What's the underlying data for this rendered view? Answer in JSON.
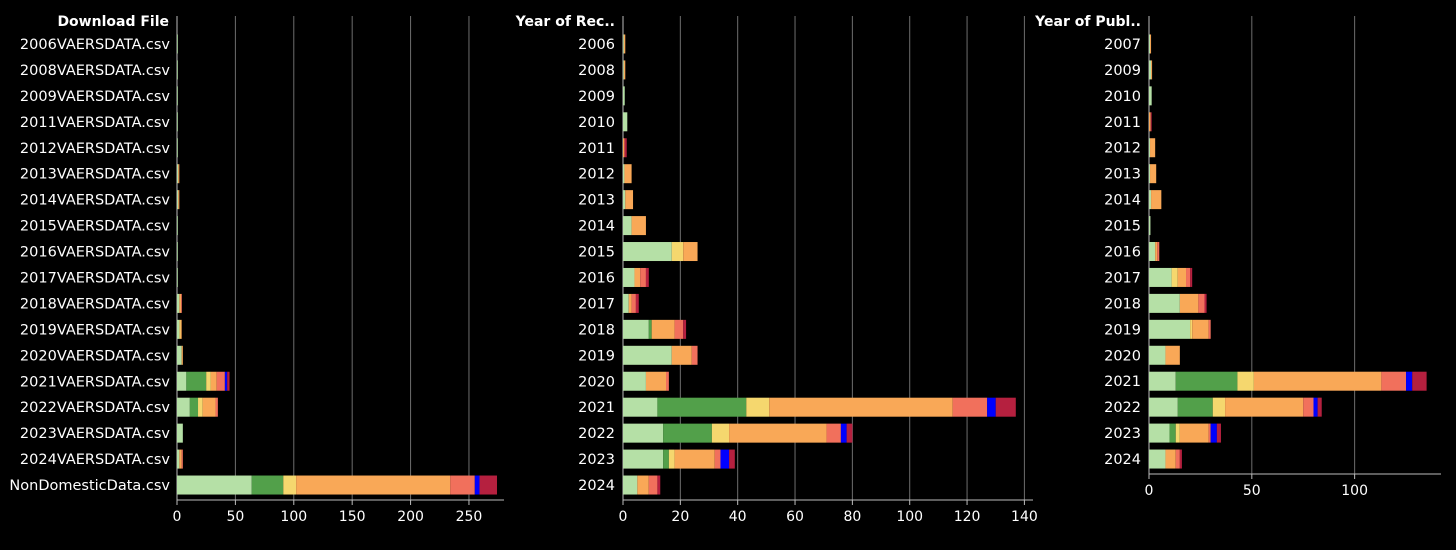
{
  "colors": {
    "background": "#000000",
    "segments": [
      "#b5e0a6",
      "#52a04a",
      "#f5d76e",
      "#f9a857",
      "#f1705c",
      "#0000ff",
      "#b5203f"
    ],
    "gridline": "#6e6e6e",
    "axis": "#bdbdbd",
    "text": "#ffffff"
  },
  "chart_data": [
    {
      "type": "bar",
      "orientation": "horizontal",
      "stacked": true,
      "title": "Download File",
      "xlim": [
        0,
        280
      ],
      "xticks": [
        0,
        50,
        100,
        150,
        200,
        250
      ],
      "grid": true,
      "categories": [
        "2006VAERSDATA.csv",
        "2008VAERSDATA.csv",
        "2009VAERSDATA.csv",
        "2011VAERSDATA.csv",
        "2012VAERSDATA.csv",
        "2013VAERSDATA.csv",
        "2014VAERSDATA.csv",
        "2015VAERSDATA.csv",
        "2016VAERSDATA.csv",
        "2017VAERSDATA.csv",
        "2018VAERSDATA.csv",
        "2019VAERSDATA.csv",
        "2020VAERSDATA.csv",
        "2021VAERSDATA.csv",
        "2022VAERSDATA.csv",
        "2023VAERSDATA.csv",
        "2024VAERSDATA.csv",
        "NonDomesticData.csv"
      ],
      "segments": [
        [
          0.3,
          0,
          0,
          0,
          0,
          0,
          0
        ],
        [
          0.3,
          0,
          0,
          0,
          0,
          0,
          0
        ],
        [
          0.3,
          0,
          0,
          0,
          0,
          0,
          0
        ],
        [
          0.3,
          0,
          0,
          0,
          0,
          0,
          0
        ],
        [
          0.3,
          0,
          0,
          0,
          0,
          0,
          0
        ],
        [
          1,
          0,
          0,
          1,
          0,
          0,
          0
        ],
        [
          1,
          0,
          0,
          1,
          0,
          0,
          0
        ],
        [
          0.3,
          0,
          0,
          0,
          0,
          0,
          0
        ],
        [
          0.3,
          0,
          0,
          0,
          0,
          0,
          0
        ],
        [
          0.3,
          0,
          0,
          0,
          0,
          0,
          0
        ],
        [
          2,
          0,
          0,
          1.5,
          0.5,
          0,
          0
        ],
        [
          2,
          0,
          1,
          1,
          0,
          0,
          0
        ],
        [
          4,
          0,
          0,
          1,
          0,
          0,
          0
        ],
        [
          8,
          17,
          4,
          5,
          7,
          2,
          2
        ],
        [
          11,
          7,
          4,
          11,
          2,
          0,
          0
        ],
        [
          5,
          0,
          0,
          0,
          0,
          0,
          0
        ],
        [
          2,
          0,
          0,
          2,
          1,
          0,
          0
        ],
        [
          64,
          27,
          11,
          132,
          21,
          4,
          15
        ]
      ]
    },
    {
      "type": "bar",
      "orientation": "horizontal",
      "stacked": true,
      "title": "Year of Rec..",
      "xlim": [
        0,
        143
      ],
      "xticks": [
        0,
        20,
        40,
        60,
        80,
        100,
        120,
        140
      ],
      "grid": true,
      "categories": [
        "2006",
        "2008",
        "2009",
        "2010",
        "2011",
        "2012",
        "2013",
        "2014",
        "2015",
        "2016",
        "2017",
        "2018",
        "2019",
        "2020",
        "2021",
        "2022",
        "2023",
        "2024"
      ],
      "segments": [
        [
          0.3,
          0,
          0,
          0.5,
          0,
          0,
          0
        ],
        [
          0.3,
          0,
          0,
          0.5,
          0,
          0,
          0
        ],
        [
          0.6,
          0,
          0,
          0,
          0,
          0,
          0
        ],
        [
          1.5,
          0,
          0,
          0,
          0,
          0,
          0
        ],
        [
          0,
          0,
          0,
          0.5,
          0,
          0,
          0.8
        ],
        [
          0.5,
          0,
          0,
          2.5,
          0,
          0,
          0
        ],
        [
          0.8,
          0,
          0,
          2.7,
          0,
          0,
          0
        ],
        [
          3,
          0,
          0,
          5,
          0,
          0,
          0
        ],
        [
          17,
          0,
          4,
          5,
          0,
          0,
          0
        ],
        [
          4,
          0,
          0,
          2,
          2,
          0,
          1
        ],
        [
          2,
          0,
          0,
          1,
          1.5,
          0,
          1
        ],
        [
          9,
          1,
          0,
          8,
          3,
          0,
          1
        ],
        [
          17,
          0,
          0,
          7,
          2,
          0,
          0
        ],
        [
          8,
          0,
          0,
          7,
          1,
          0,
          0
        ],
        [
          12,
          31,
          8,
          64,
          12,
          3,
          7
        ],
        [
          14,
          17,
          6,
          34,
          5,
          2,
          2
        ],
        [
          14,
          2,
          2,
          14,
          2,
          3,
          2
        ],
        [
          5,
          0,
          0,
          4,
          3,
          0,
          1
        ]
      ]
    },
    {
      "type": "bar",
      "orientation": "horizontal",
      "stacked": true,
      "title": "Year of Publ..",
      "xlim": [
        0,
        142
      ],
      "xticks": [
        0,
        50,
        100
      ],
      "grid": true,
      "categories": [
        "2007",
        "2009",
        "2010",
        "2011",
        "2012",
        "2013",
        "2014",
        "2015",
        "2016",
        "2017",
        "2018",
        "2019",
        "2020",
        "2021",
        "2022",
        "2023",
        "2024"
      ],
      "segments": [
        [
          0.5,
          0,
          0,
          0.5,
          0,
          0,
          0
        ],
        [
          1,
          0,
          0,
          0.5,
          0,
          0,
          0
        ],
        [
          1.3,
          0,
          0,
          0,
          0,
          0,
          0
        ],
        [
          0,
          0,
          0,
          0.8,
          0,
          0,
          0.5
        ],
        [
          0.5,
          0,
          0,
          2.5,
          0,
          0,
          0
        ],
        [
          0.5,
          0,
          0,
          3,
          0,
          0,
          0
        ],
        [
          1,
          0,
          0,
          5,
          0,
          0,
          0
        ],
        [
          0.7,
          0,
          0,
          0,
          0,
          0,
          0
        ],
        [
          3,
          0,
          0,
          1,
          1,
          0,
          0
        ],
        [
          11,
          0,
          3,
          4,
          2,
          0,
          1
        ],
        [
          15,
          0,
          0,
          9,
          3,
          0,
          1
        ],
        [
          20,
          0,
          1,
          8,
          1,
          0,
          0
        ],
        [
          8,
          0,
          0,
          7,
          0,
          0,
          0
        ],
        [
          13,
          30,
          8,
          62,
          12,
          3,
          7
        ],
        [
          14,
          17,
          6,
          38,
          5,
          2,
          2
        ],
        [
          10,
          3,
          2,
          14,
          1,
          3,
          2
        ],
        [
          8,
          0,
          0,
          5,
          2,
          0,
          1
        ]
      ]
    }
  ]
}
